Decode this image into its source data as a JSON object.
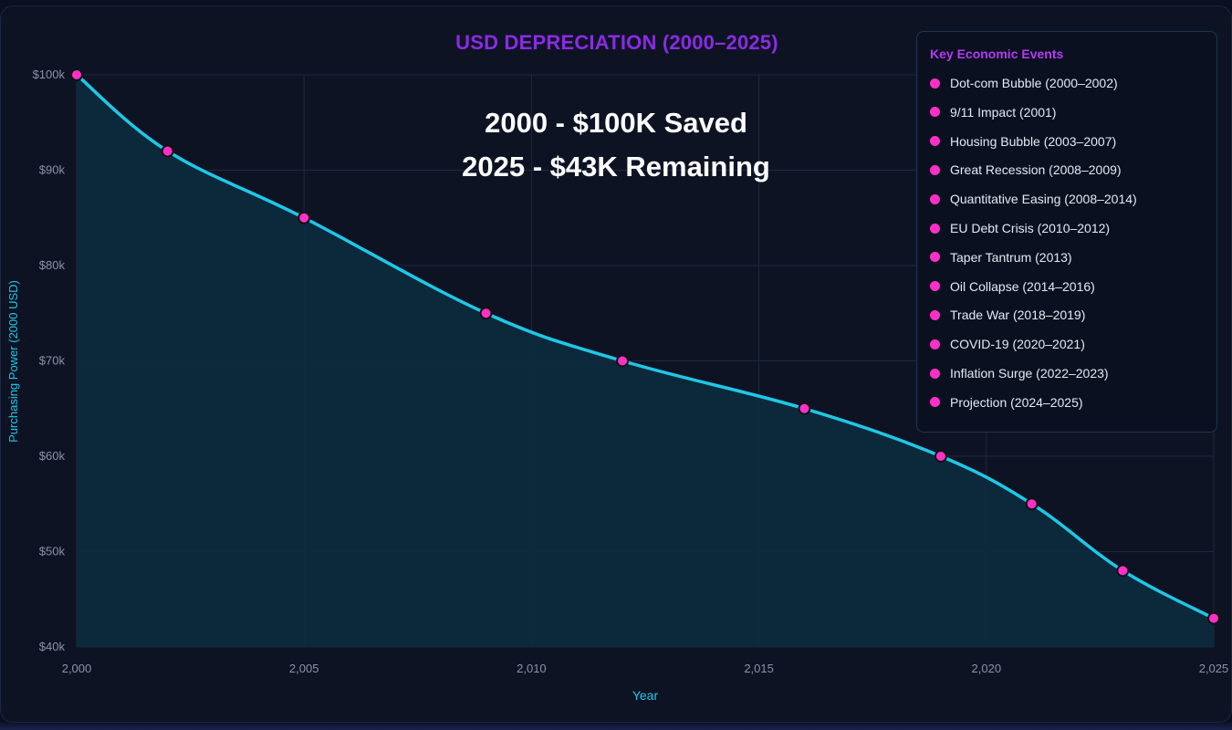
{
  "chart_data": {
    "type": "area",
    "title": "USD DEPRECIATION (2000–2025)",
    "annotation_lines": [
      "2000 - $100K Saved",
      "2025 - $43K Remaining"
    ],
    "xlabel": "Year",
    "ylabel": "Purchasing Power (2000 USD)",
    "x": [
      2000,
      2002,
      2005,
      2009,
      2012,
      2016,
      2019,
      2021,
      2023,
      2025
    ],
    "series": [
      {
        "values": [
          100,
          92,
          85,
          75,
          70,
          65,
          60,
          55,
          48,
          43
        ]
      }
    ],
    "xlim": [
      2000,
      2025
    ],
    "ylim": [
      40,
      100
    ],
    "xticks": [
      2000,
      2005,
      2010,
      2015,
      2020,
      2025
    ],
    "xtick_labels": [
      "2,000",
      "2,005",
      "2,010",
      "2,015",
      "2,020",
      "2,025"
    ],
    "yticks": [
      40,
      50,
      60,
      70,
      80,
      90,
      100
    ],
    "ytick_labels": [
      "$40k",
      "$50k",
      "$60k",
      "$70k",
      "$80k",
      "$90k",
      "$100k"
    ],
    "grid": true,
    "legend": {
      "title": "Key Economic Events",
      "placement": "top-right",
      "items": [
        "Dot-com Bubble (2000–2002)",
        "9/11 Impact (2001)",
        "Housing Bubble (2003–2007)",
        "Great Recession (2008–2009)",
        "Quantitative Easing (2008–2014)",
        "EU Debt Crisis (2010–2012)",
        "Taper Tantrum (2013)",
        "Oil Collapse (2014–2016)",
        "Trade War (2018–2019)",
        "COVID-19 (2020–2021)",
        "Inflation Surge (2022–2023)",
        "Projection (2024–2025)"
      ]
    },
    "colors": {
      "line": "#1ec8e6",
      "marker": "#ff2fc8",
      "area": "#0d2a3e",
      "title": "#8a2be2",
      "axis_label": "#1ec8e6",
      "tick": "#8a93a6",
      "grid": "#1c2a3c"
    }
  }
}
